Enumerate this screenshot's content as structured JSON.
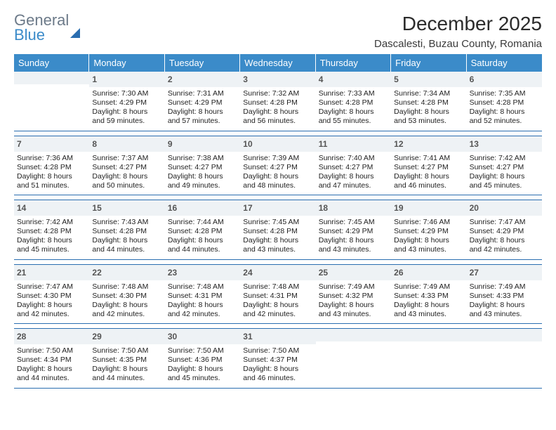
{
  "logo": {
    "line1": "General",
    "line2": "Blue"
  },
  "title": "December 2025",
  "location": "Dascalesti, Buzau County, Romania",
  "daysOfWeek": [
    "Sunday",
    "Monday",
    "Tuesday",
    "Wednesday",
    "Thursday",
    "Friday",
    "Saturday"
  ],
  "colors": {
    "headerBg": "#3b8bc9",
    "headerText": "#ffffff",
    "dayNumBg": "#eef2f5",
    "weekBorder": "#2a6db0",
    "text": "#222222",
    "logoGray": "#6c7a89",
    "logoBlue": "#3b8bc9"
  },
  "weeks": [
    [
      {
        "num": "",
        "lines": []
      },
      {
        "num": "1",
        "lines": [
          "Sunrise: 7:30 AM",
          "Sunset: 4:29 PM",
          "Daylight: 8 hours",
          "and 59 minutes."
        ]
      },
      {
        "num": "2",
        "lines": [
          "Sunrise: 7:31 AM",
          "Sunset: 4:29 PM",
          "Daylight: 8 hours",
          "and 57 minutes."
        ]
      },
      {
        "num": "3",
        "lines": [
          "Sunrise: 7:32 AM",
          "Sunset: 4:28 PM",
          "Daylight: 8 hours",
          "and 56 minutes."
        ]
      },
      {
        "num": "4",
        "lines": [
          "Sunrise: 7:33 AM",
          "Sunset: 4:28 PM",
          "Daylight: 8 hours",
          "and 55 minutes."
        ]
      },
      {
        "num": "5",
        "lines": [
          "Sunrise: 7:34 AM",
          "Sunset: 4:28 PM",
          "Daylight: 8 hours",
          "and 53 minutes."
        ]
      },
      {
        "num": "6",
        "lines": [
          "Sunrise: 7:35 AM",
          "Sunset: 4:28 PM",
          "Daylight: 8 hours",
          "and 52 minutes."
        ]
      }
    ],
    [
      {
        "num": "7",
        "lines": [
          "Sunrise: 7:36 AM",
          "Sunset: 4:28 PM",
          "Daylight: 8 hours",
          "and 51 minutes."
        ]
      },
      {
        "num": "8",
        "lines": [
          "Sunrise: 7:37 AM",
          "Sunset: 4:27 PM",
          "Daylight: 8 hours",
          "and 50 minutes."
        ]
      },
      {
        "num": "9",
        "lines": [
          "Sunrise: 7:38 AM",
          "Sunset: 4:27 PM",
          "Daylight: 8 hours",
          "and 49 minutes."
        ]
      },
      {
        "num": "10",
        "lines": [
          "Sunrise: 7:39 AM",
          "Sunset: 4:27 PM",
          "Daylight: 8 hours",
          "and 48 minutes."
        ]
      },
      {
        "num": "11",
        "lines": [
          "Sunrise: 7:40 AM",
          "Sunset: 4:27 PM",
          "Daylight: 8 hours",
          "and 47 minutes."
        ]
      },
      {
        "num": "12",
        "lines": [
          "Sunrise: 7:41 AM",
          "Sunset: 4:27 PM",
          "Daylight: 8 hours",
          "and 46 minutes."
        ]
      },
      {
        "num": "13",
        "lines": [
          "Sunrise: 7:42 AM",
          "Sunset: 4:27 PM",
          "Daylight: 8 hours",
          "and 45 minutes."
        ]
      }
    ],
    [
      {
        "num": "14",
        "lines": [
          "Sunrise: 7:42 AM",
          "Sunset: 4:28 PM",
          "Daylight: 8 hours",
          "and 45 minutes."
        ]
      },
      {
        "num": "15",
        "lines": [
          "Sunrise: 7:43 AM",
          "Sunset: 4:28 PM",
          "Daylight: 8 hours",
          "and 44 minutes."
        ]
      },
      {
        "num": "16",
        "lines": [
          "Sunrise: 7:44 AM",
          "Sunset: 4:28 PM",
          "Daylight: 8 hours",
          "and 44 minutes."
        ]
      },
      {
        "num": "17",
        "lines": [
          "Sunrise: 7:45 AM",
          "Sunset: 4:28 PM",
          "Daylight: 8 hours",
          "and 43 minutes."
        ]
      },
      {
        "num": "18",
        "lines": [
          "Sunrise: 7:45 AM",
          "Sunset: 4:29 PM",
          "Daylight: 8 hours",
          "and 43 minutes."
        ]
      },
      {
        "num": "19",
        "lines": [
          "Sunrise: 7:46 AM",
          "Sunset: 4:29 PM",
          "Daylight: 8 hours",
          "and 43 minutes."
        ]
      },
      {
        "num": "20",
        "lines": [
          "Sunrise: 7:47 AM",
          "Sunset: 4:29 PM",
          "Daylight: 8 hours",
          "and 42 minutes."
        ]
      }
    ],
    [
      {
        "num": "21",
        "lines": [
          "Sunrise: 7:47 AM",
          "Sunset: 4:30 PM",
          "Daylight: 8 hours",
          "and 42 minutes."
        ]
      },
      {
        "num": "22",
        "lines": [
          "Sunrise: 7:48 AM",
          "Sunset: 4:30 PM",
          "Daylight: 8 hours",
          "and 42 minutes."
        ]
      },
      {
        "num": "23",
        "lines": [
          "Sunrise: 7:48 AM",
          "Sunset: 4:31 PM",
          "Daylight: 8 hours",
          "and 42 minutes."
        ]
      },
      {
        "num": "24",
        "lines": [
          "Sunrise: 7:48 AM",
          "Sunset: 4:31 PM",
          "Daylight: 8 hours",
          "and 42 minutes."
        ]
      },
      {
        "num": "25",
        "lines": [
          "Sunrise: 7:49 AM",
          "Sunset: 4:32 PM",
          "Daylight: 8 hours",
          "and 43 minutes."
        ]
      },
      {
        "num": "26",
        "lines": [
          "Sunrise: 7:49 AM",
          "Sunset: 4:33 PM",
          "Daylight: 8 hours",
          "and 43 minutes."
        ]
      },
      {
        "num": "27",
        "lines": [
          "Sunrise: 7:49 AM",
          "Sunset: 4:33 PM",
          "Daylight: 8 hours",
          "and 43 minutes."
        ]
      }
    ],
    [
      {
        "num": "28",
        "lines": [
          "Sunrise: 7:50 AM",
          "Sunset: 4:34 PM",
          "Daylight: 8 hours",
          "and 44 minutes."
        ]
      },
      {
        "num": "29",
        "lines": [
          "Sunrise: 7:50 AM",
          "Sunset: 4:35 PM",
          "Daylight: 8 hours",
          "and 44 minutes."
        ]
      },
      {
        "num": "30",
        "lines": [
          "Sunrise: 7:50 AM",
          "Sunset: 4:36 PM",
          "Daylight: 8 hours",
          "and 45 minutes."
        ]
      },
      {
        "num": "31",
        "lines": [
          "Sunrise: 7:50 AM",
          "Sunset: 4:37 PM",
          "Daylight: 8 hours",
          "and 46 minutes."
        ]
      },
      {
        "num": "",
        "lines": []
      },
      {
        "num": "",
        "lines": []
      },
      {
        "num": "",
        "lines": []
      }
    ]
  ]
}
